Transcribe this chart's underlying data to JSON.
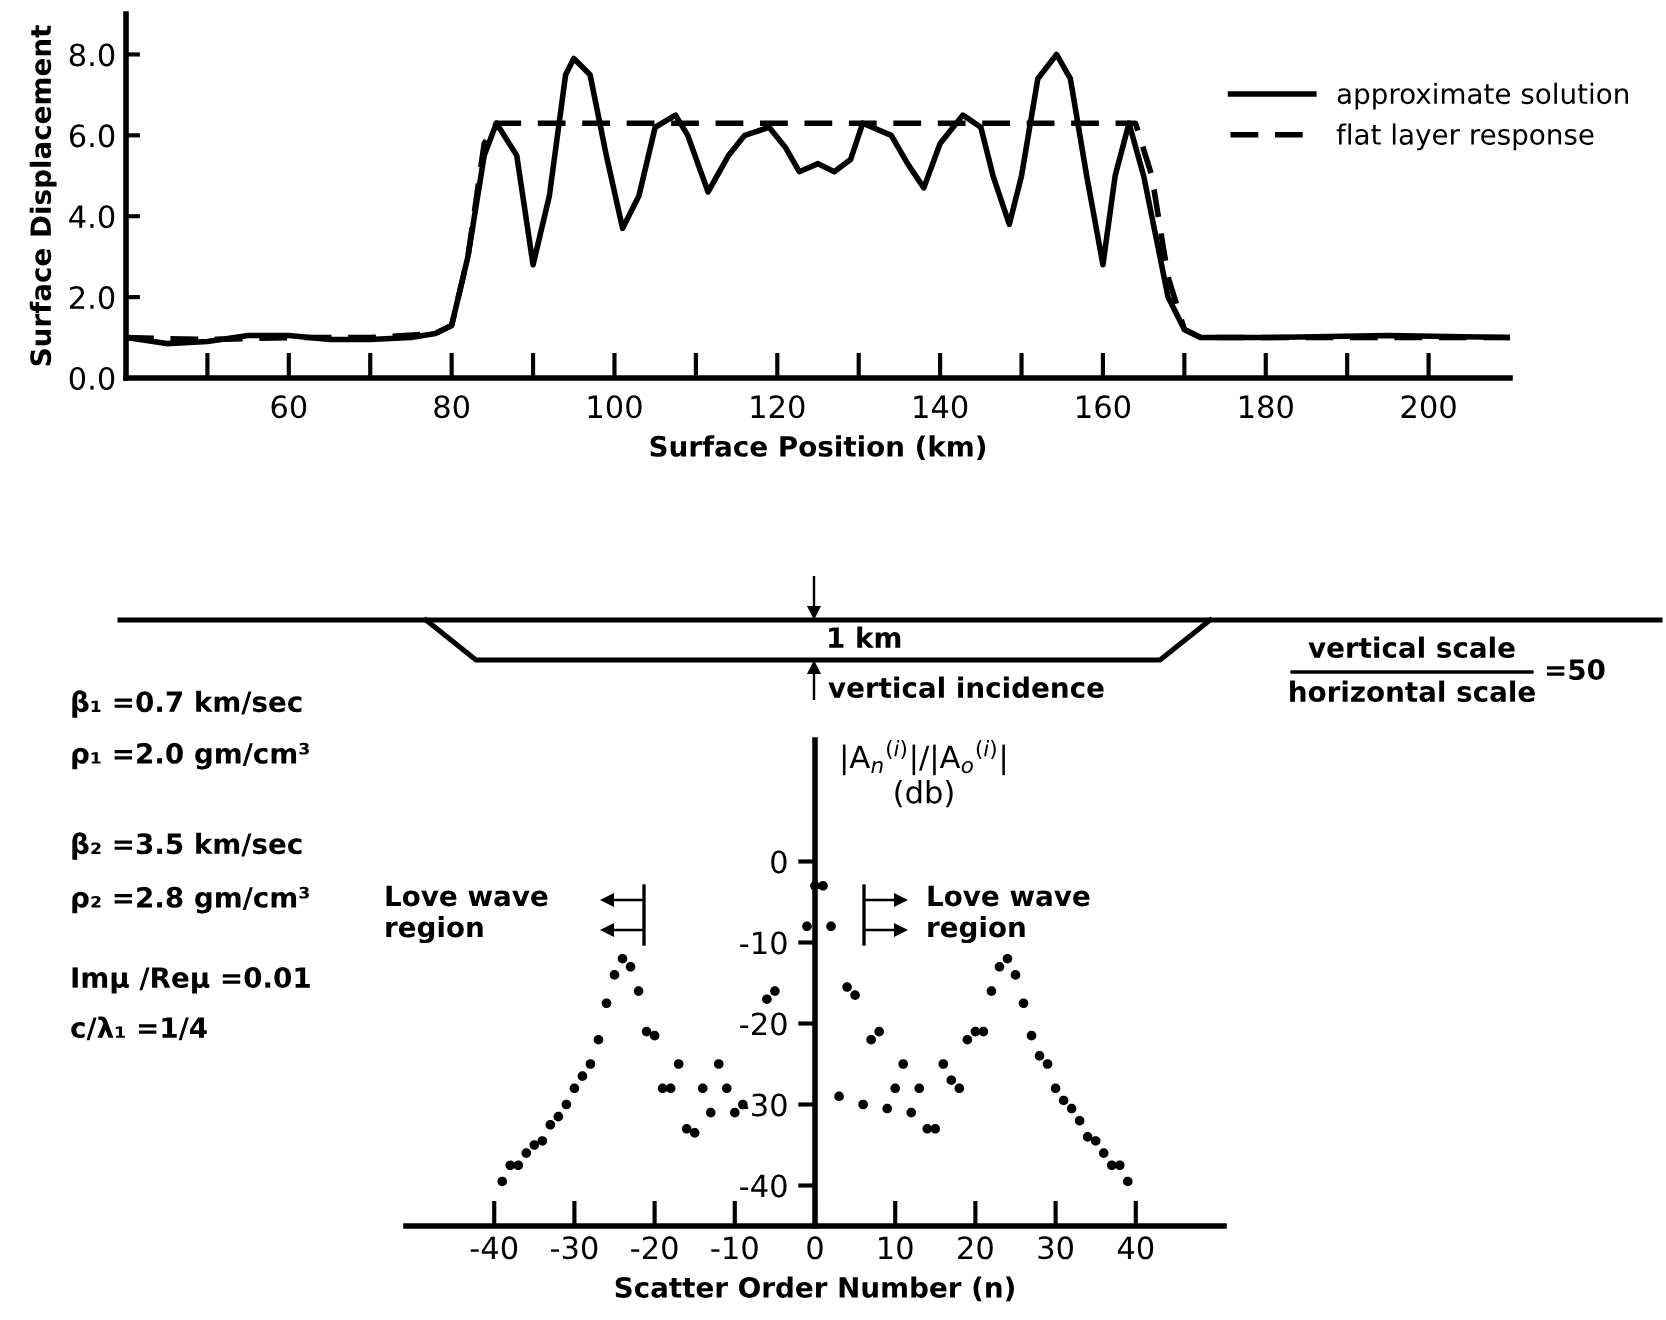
{
  "chart_data": [
    {
      "type": "line",
      "xlabel": "Surface Position (km)",
      "ylabel": "Surface Displacement",
      "xlim": [
        40,
        210
      ],
      "ylim": [
        0,
        9
      ],
      "xticks": [
        {
          "value": 50,
          "label": null
        },
        60,
        {
          "value": 70,
          "label": null
        },
        80,
        {
          "value": 90,
          "label": null
        },
        100,
        {
          "value": 110,
          "label": null
        },
        120,
        {
          "value": 130,
          "label": null
        },
        140,
        {
          "value": 150,
          "label": null
        },
        160,
        {
          "value": 170,
          "label": null
        },
        180,
        {
          "value": 190,
          "label": null
        },
        200
      ],
      "yticks": [
        {
          "value": 0,
          "label": "0.0"
        },
        {
          "value": 2,
          "label": "2.0"
        },
        {
          "value": 4,
          "label": "4.0"
        },
        {
          "value": 6,
          "label": "6.0"
        },
        {
          "value": 8,
          "label": "8.0"
        }
      ],
      "legend": "top right",
      "grid": false,
      "series": [
        {
          "name": "approximate solution",
          "color": "#000000",
          "line_style": "solid",
          "x": [
            40,
            45,
            50,
            55,
            60,
            65,
            70,
            75,
            78,
            80,
            82,
            84,
            85.5,
            88,
            90,
            92,
            94,
            95,
            97,
            99,
            101,
            103,
            105,
            107.5,
            109,
            111.5,
            114,
            116,
            119,
            121,
            122.7,
            125,
            127,
            129,
            130.5,
            134,
            136,
            138,
            140,
            142.8,
            145,
            146.5,
            148.5,
            150,
            152,
            154.3,
            156,
            158,
            160,
            161.5,
            163.2,
            165,
            166.5,
            168,
            170,
            172,
            180,
            195,
            210
          ],
          "values": [
            1.0,
            0.85,
            0.9,
            1.05,
            1.05,
            0.95,
            0.95,
            1.0,
            1.1,
            1.3,
            3.0,
            5.5,
            6.3,
            5.5,
            2.8,
            4.5,
            7.5,
            7.9,
            7.5,
            5.5,
            3.7,
            4.5,
            6.2,
            6.5,
            6.0,
            4.6,
            5.5,
            6.0,
            6.2,
            5.7,
            5.1,
            5.3,
            5.1,
            5.4,
            6.3,
            6.0,
            5.3,
            4.7,
            5.8,
            6.5,
            6.2,
            5.0,
            3.8,
            5.0,
            7.4,
            8.0,
            7.4,
            5.0,
            2.8,
            5.0,
            6.3,
            5.0,
            3.5,
            2.0,
            1.2,
            1.0,
            1.0,
            1.05,
            1.0
          ]
        },
        {
          "name": "flat layer response",
          "color": "#000000",
          "line_style": "dashed",
          "x": [
            40,
            50,
            60,
            70,
            78,
            80,
            82,
            84,
            85.5,
            164,
            166,
            168,
            170,
            172,
            210
          ],
          "values": [
            1.0,
            0.95,
            1.0,
            1.0,
            1.1,
            1.3,
            3.0,
            5.8,
            6.3,
            6.3,
            5.0,
            2.5,
            1.2,
            1.0,
            1.0
          ]
        }
      ]
    },
    {
      "type": "scatter",
      "xlabel": "Scatter Order Number (n)",
      "ylabel": "|A$_{n}$$^{(i)}$|/|A$_{o}$$^{(i)}$|\n(db)",
      "xlim": [
        -51,
        51
      ],
      "ylim": [
        -45,
        15
      ],
      "xticks": [
        -40,
        -30,
        -20,
        -10,
        0,
        10,
        20,
        30,
        40
      ],
      "yticks": [
        -40,
        -30,
        -20,
        -10,
        0
      ],
      "marker": "circle",
      "grid": false,
      "legend": false,
      "annotations": [
        "β₁ =0.7 km/sec",
        "ρ₁ =2.0 gm/cm³",
        "β₂ =3.5 km/sec",
        "ρ₂ =2.8 gm/cm³",
        "Imμ /Reμ =0.01",
        "c/λ₁ =1/4",
        "1 km",
        "vertical incidence",
        "vertical scale",
        "horizontal scale",
        "=50",
        "Love wave\nregion",
        "Love wave\nregion"
      ],
      "series": [
        {
          "color": "#000000",
          "x": [
            -39,
            -38,
            -37,
            -36,
            -35,
            -34,
            -33,
            -32,
            -31,
            -30,
            -29,
            -28,
            -27,
            -26,
            -25,
            -24,
            -23,
            -22,
            -21,
            -20,
            -19,
            -18,
            -17,
            -16,
            -15,
            -14,
            -13,
            -12,
            -11,
            -10,
            -9,
            -6,
            -5,
            -1,
            0,
            1,
            2,
            3,
            4,
            5,
            6,
            7,
            8,
            9,
            10,
            11,
            12,
            13,
            14,
            15,
            16,
            17,
            18,
            19,
            20,
            21,
            22,
            23,
            24,
            25,
            26,
            27,
            28,
            29,
            30,
            31,
            32,
            33,
            34,
            35,
            36,
            37,
            38,
            39
          ],
          "values": [
            -39.5,
            -37.5,
            -37.5,
            -36,
            -35,
            -34.5,
            -32.5,
            -31.5,
            -30,
            -28,
            -26.5,
            -25,
            -22,
            -17.5,
            -14,
            -12,
            -13,
            -16,
            -21,
            -21.5,
            -28,
            -28,
            -25,
            -33,
            -33.5,
            -28,
            -31,
            -25,
            -28,
            -31,
            -30,
            -17,
            -16,
            -8,
            -3,
            -3,
            -8,
            -29,
            -15.5,
            -16.5,
            -30,
            -22,
            -21,
            -30.5,
            -28,
            -25,
            -31,
            -28,
            -33,
            -33,
            -25,
            -27,
            -28,
            -22,
            -21,
            -21,
            -16,
            -13,
            -12,
            -14,
            -17.5,
            -21.5,
            -24,
            -25,
            -28,
            -29.5,
            -30.5,
            -32,
            -34,
            -34.5,
            -36,
            -37.5,
            -37.5,
            -39.5
          ]
        }
      ]
    }
  ]
}
